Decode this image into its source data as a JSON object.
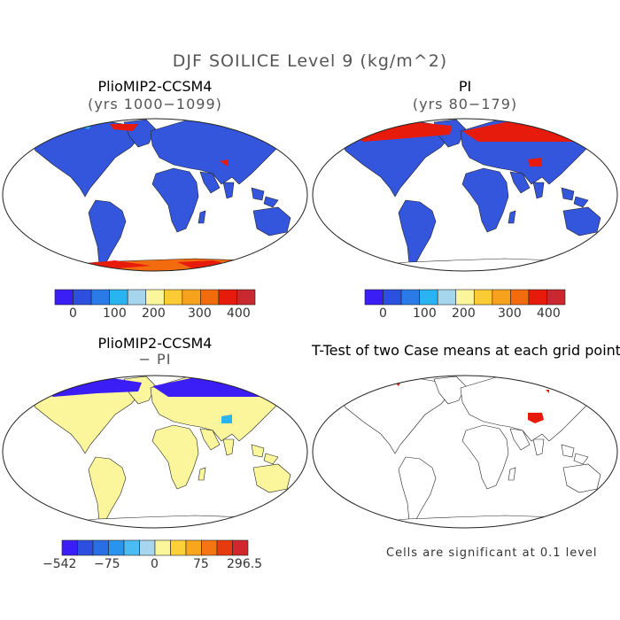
{
  "figure": {
    "title": "DJF SOILICE Level 9 (kg/m^2)",
    "note": "Cells are significant at 0.1 level"
  },
  "panels": [
    {
      "title": "PlioMIP2-CCSM4",
      "subtitle": "(yrs 1000−1099)"
    },
    {
      "title": "PI",
      "subtitle": "(yrs 80−179)"
    },
    {
      "title": "PlioMIP2-CCSM4",
      "subtitle": "− PI"
    },
    {
      "title": "T-Test of two Case means at each grid point",
      "subtitle": ""
    }
  ],
  "colorbars": {
    "absolute": {
      "colors": [
        "#3b1ef5",
        "#2d4fe0",
        "#2a7ae8",
        "#29b3f0",
        "#a6d6ee",
        "#fbf69b",
        "#fbcb35",
        "#f7a21c",
        "#f26b0f",
        "#e61b0c",
        "#c9282e"
      ],
      "tick_labels": [
        "0",
        "100",
        "200",
        "300",
        "400"
      ]
    },
    "difference": {
      "colors": [
        "#3b1ef5",
        "#2d4fe0",
        "#2a6ee5",
        "#2a93ec",
        "#4bbcf3",
        "#a6d6ee",
        "#fbf69b",
        "#fbd03a",
        "#f9a51e",
        "#f47512",
        "#e63b0f",
        "#d1262b"
      ],
      "tick_labels": [
        "−542",
        "−75",
        "0",
        "75",
        "296.5"
      ]
    }
  },
  "map_colors": {
    "base_blue": "#3456dc",
    "blue_light": "#29b3f0",
    "pale_yellow": "#fbf69b",
    "deep_blue": "#3b1ef5",
    "red": "#e61b0c",
    "orange": "#f26b0f",
    "yellow": "#fbcb35",
    "outline": "#222222",
    "significant": "#e61b0c"
  }
}
